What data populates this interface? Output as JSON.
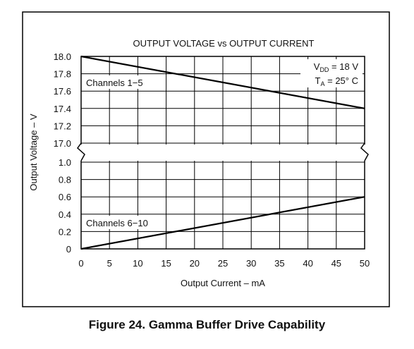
{
  "chart_data": {
    "type": "line",
    "title": "OUTPUT VOLTAGE vs OUTPUT CURRENT",
    "xlabel": "Output Current – mA",
    "ylabel": "Output Voltage – V",
    "x_ticks": [
      "0",
      "5",
      "10",
      "15",
      "20",
      "25",
      "30",
      "35",
      "40",
      "45",
      "50"
    ],
    "xlim": [
      0,
      50
    ],
    "upper_panel": {
      "ylim": [
        17.0,
        18.0
      ],
      "y_ticks": [
        "18.0",
        "17.8",
        "17.6",
        "17.4",
        "17.2",
        "17.0"
      ],
      "series": [
        {
          "name": "Channels 1−5",
          "x": [
            0,
            50
          ],
          "y": [
            18.0,
            17.4
          ]
        }
      ]
    },
    "lower_panel": {
      "ylim": [
        0,
        1.0
      ],
      "y_ticks": [
        "1.0",
        "0.8",
        "0.6",
        "0.4",
        "0.2",
        "0"
      ],
      "series": [
        {
          "name": "Channels 6−10",
          "x": [
            0,
            50
          ],
          "y": [
            0,
            0.6
          ]
        }
      ]
    },
    "annotations": {
      "vdd_symbol": "V",
      "vdd_subscript": "DD",
      "vdd_value": " = 18 V",
      "ta_symbol": "T",
      "ta_subscript": "A",
      "ta_value": " = 25° C"
    },
    "grid": true,
    "axis_break": true
  },
  "figure": {
    "caption": "Figure 24. Gamma Buffer Drive Capability"
  }
}
